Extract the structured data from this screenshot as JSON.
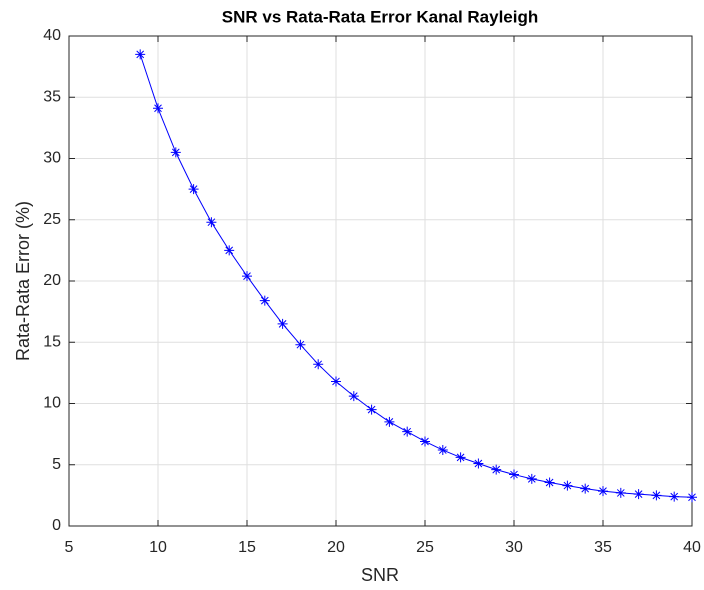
{
  "chart_data": {
    "type": "line",
    "title": "SNR vs Rata-Rata Error Kanal Rayleigh",
    "xlabel": "SNR",
    "ylabel": "Rata-Rata Error (%)",
    "x": [
      9,
      10,
      11,
      12,
      13,
      14,
      15,
      16,
      17,
      18,
      19,
      20,
      21,
      22,
      23,
      24,
      25,
      26,
      27,
      28,
      29,
      30,
      31,
      32,
      33,
      34,
      35,
      36,
      37,
      38,
      39,
      40
    ],
    "series": [
      {
        "name": "Rata-Rata Error",
        "color": "#0000ff",
        "values": [
          38.5,
          34.1,
          30.5,
          27.5,
          24.8,
          22.5,
          20.4,
          18.4,
          16.5,
          14.8,
          13.2,
          11.8,
          10.6,
          9.5,
          8.5,
          7.7,
          6.9,
          6.2,
          5.6,
          5.1,
          4.6,
          4.2,
          3.85,
          3.55,
          3.3,
          3.05,
          2.85,
          2.7,
          2.6,
          2.5,
          2.4,
          2.35
        ]
      }
    ],
    "xlim": [
      5,
      40
    ],
    "xticks": [
      5,
      10,
      15,
      20,
      25,
      30,
      35,
      40
    ],
    "ylim": [
      0,
      40
    ],
    "yticks": [
      0,
      5,
      10,
      15,
      20,
      25,
      30,
      35,
      40
    ],
    "grid": true
  }
}
